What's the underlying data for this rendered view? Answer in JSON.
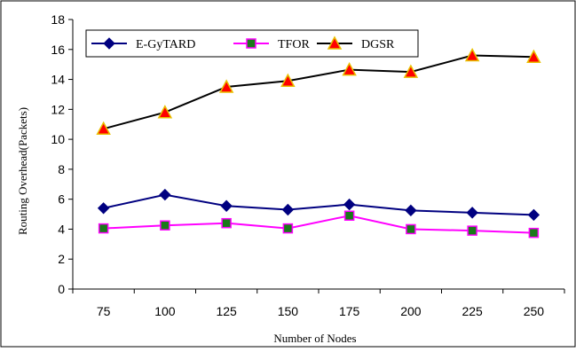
{
  "chart_data": {
    "type": "line",
    "title": "",
    "xlabel": "Number of Nodes",
    "ylabel": "Routing Overhead(Packets)",
    "categories": [
      "75",
      "100",
      "125",
      "150",
      "175",
      "200",
      "225",
      "250"
    ],
    "ylim": [
      0,
      18
    ],
    "yticks": [
      "0",
      "2",
      "4",
      "6",
      "8",
      "10",
      "12",
      "14",
      "16",
      "18"
    ],
    "grid": false,
    "legend_position": "top-left",
    "series": [
      {
        "name": "E-GyTARD",
        "color": "#000080",
        "marker": "diamond",
        "values": [
          5.4,
          6.3,
          5.55,
          5.3,
          5.65,
          5.25,
          5.1,
          4.95
        ]
      },
      {
        "name": "TFOR",
        "color": "#ff00ff",
        "marker": "square",
        "values": [
          4.05,
          4.25,
          4.4,
          4.05,
          4.9,
          4.0,
          3.9,
          3.75
        ]
      },
      {
        "name": "DGSR",
        "color": "#000000",
        "marker": "triangle",
        "values": [
          10.7,
          11.8,
          13.5,
          13.9,
          14.65,
          14.5,
          15.6,
          15.5
        ]
      }
    ]
  }
}
